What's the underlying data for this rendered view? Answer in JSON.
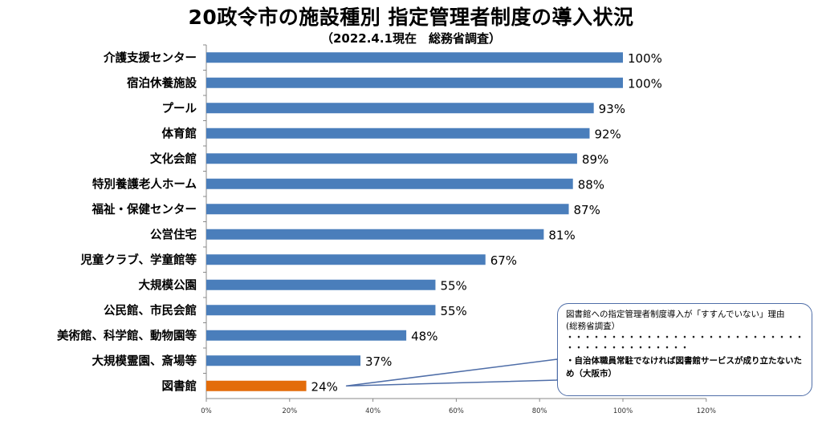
{
  "title": "20政令市の施設種別 指定管理者制度の導入状況",
  "subtitle": "（2022.4.1現在　総務省調査）",
  "colors": {
    "bar": "#4a7ebb",
    "highlight": "#e36c0a",
    "axis": "#888888",
    "callout_border": "#4f6ea8"
  },
  "chart_data": {
    "type": "bar",
    "orientation": "horizontal",
    "categories": [
      "介護支援センター",
      "宿泊休養施設",
      "プール",
      "体育館",
      "文化会館",
      "特別養護老人ホーム",
      "福祉・保健センター",
      "公営住宅",
      "児童クラブ、学童館等",
      "大規模公園",
      "公民館、市民会館",
      "美術館、科学館、動物園等",
      "大規模霊園、斎場等",
      "図書館"
    ],
    "values": [
      100,
      100,
      93,
      92,
      89,
      88,
      87,
      81,
      67,
      55,
      55,
      48,
      37,
      24
    ],
    "labels": [
      "100%",
      "100%",
      "93%",
      "92%",
      "89%",
      "88%",
      "87%",
      "81%",
      "67%",
      "55%",
      "55%",
      "48%",
      "37%",
      "24%"
    ],
    "highlight_index": 13,
    "xlim": [
      0,
      120
    ],
    "xticks": [
      "0%",
      "20%",
      "40%",
      "60%",
      "80%",
      "100%",
      "120%"
    ],
    "grid": false
  },
  "callout": {
    "question": "図書館への指定管理者制度導入が「すすんでいない」理由",
    "source": "(総務省調査）",
    "dots_long": "・・・・・・・・・・・・・・・・・・・・・・・・・・・・・・・・・・・・",
    "dots_short": "・・・・・・・・・・・・・・・・・・",
    "reason": "・自治体職員常駐でなければ図書館サービスが成り立たないため（大阪市）"
  }
}
